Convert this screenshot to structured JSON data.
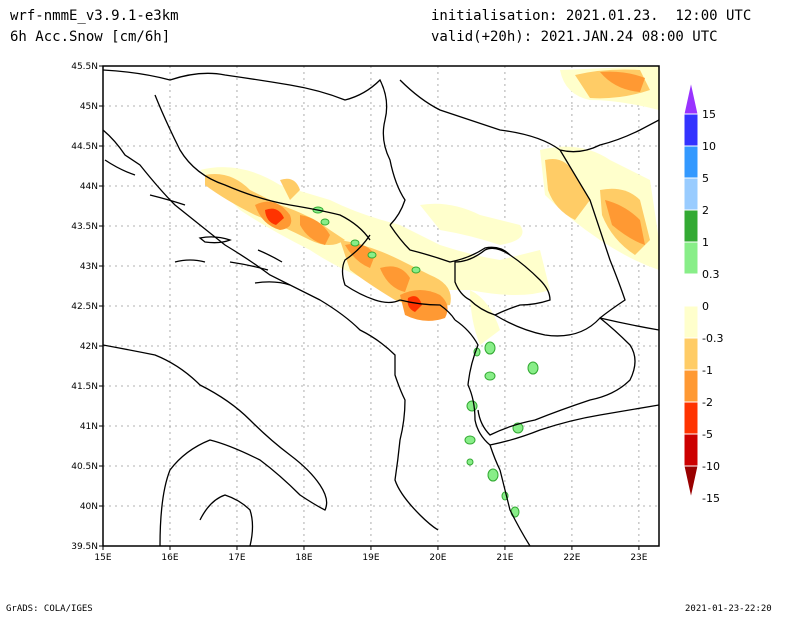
{
  "header": {
    "model": "wrf-nmmE_v3.9.1-e3km",
    "field": "6h Acc.Snow [cm/6h]",
    "init": "initialisation: 2021.01.23.  12:00 UTC",
    "valid": "valid(+20h): 2021.JAN.24 08:00 UTC"
  },
  "footer": {
    "software": "GrADS: COLA/IGES",
    "timestamp": "2021-01-23-22:20"
  },
  "map": {
    "lon_ticks": [
      "15E",
      "16E",
      "17E",
      "18E",
      "19E",
      "20E",
      "21E",
      "22E",
      "23E"
    ],
    "lat_ticks": [
      "45.5N",
      "45N",
      "44.5N",
      "44N",
      "43.5N",
      "43N",
      "42.5N",
      "42N",
      "41.5N",
      "41N",
      "40.5N",
      "40N",
      "39.5N"
    ],
    "lon_range": [
      15,
      23.3
    ],
    "lat_range": [
      39.5,
      45.5
    ],
    "grid": true
  },
  "colorbar": {
    "labels": [
      "15",
      "10",
      "5",
      "2",
      "1",
      "0.3",
      "0",
      "-0.3",
      "-1",
      "-2",
      "-5",
      "-10",
      "-15"
    ],
    "colors": [
      "#9933ff",
      "#3333ff",
      "#3399ff",
      "#99ccff",
      "#33aa33",
      "#88ee88",
      "#ffffff",
      "#ffffcc",
      "#ffcc66",
      "#ff9933",
      "#ff3300",
      "#cc0000",
      "#990000"
    ]
  }
}
